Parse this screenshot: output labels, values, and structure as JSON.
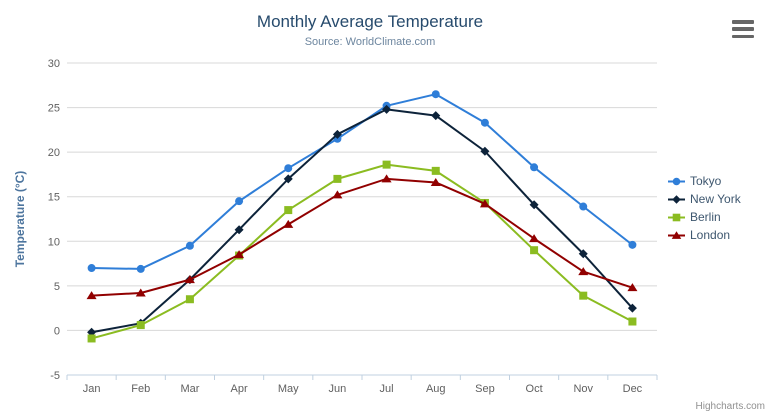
{
  "header": {
    "title": "Monthly Average Temperature",
    "subtitle": "Source: WorldClimate.com"
  },
  "credits_label": "Highcharts.com",
  "theme": {
    "title_color": "#274b6d",
    "subtitle_color": "#6d869f",
    "axis_title_color": "#4d759e",
    "axis_label_color": "#606060",
    "gridline_color": "#d8d8d8",
    "axis_line_color": "#c0d0e0",
    "menu_icon_color": "#666666",
    "credits_color": "#909090"
  },
  "icons": {
    "context_menu": "hamburger-icon"
  },
  "chart_data": {
    "type": "line",
    "title": "Monthly Average Temperature",
    "subtitle": "Source: WorldClimate.com",
    "categories": [
      "Jan",
      "Feb",
      "Mar",
      "Apr",
      "May",
      "Jun",
      "Jul",
      "Aug",
      "Sep",
      "Oct",
      "Nov",
      "Dec"
    ],
    "series": [
      {
        "name": "Tokyo",
        "color": "#2f7ed8",
        "marker": "circle",
        "values": [
          7.0,
          6.9,
          9.5,
          14.5,
          18.2,
          21.5,
          25.2,
          26.5,
          23.3,
          18.3,
          13.9,
          9.6
        ]
      },
      {
        "name": "New York",
        "color": "#0d233a",
        "marker": "diamond",
        "values": [
          -0.2,
          0.8,
          5.7,
          11.3,
          17.0,
          22.0,
          24.8,
          24.1,
          20.1,
          14.1,
          8.6,
          2.5
        ]
      },
      {
        "name": "Berlin",
        "color": "#8bbc21",
        "marker": "square",
        "values": [
          -0.9,
          0.6,
          3.5,
          8.4,
          13.5,
          17.0,
          18.6,
          17.9,
          14.3,
          9.0,
          3.9,
          1.0
        ]
      },
      {
        "name": "London",
        "color": "#910000",
        "marker": "triangle",
        "values": [
          3.9,
          4.2,
          5.7,
          8.5,
          11.9,
          15.2,
          17.0,
          16.6,
          14.2,
          10.3,
          6.6,
          4.8
        ]
      }
    ],
    "xlabel": "",
    "ylabel": "Temperature (°C)",
    "ylim": [
      -5,
      30
    ],
    "ytick_interval": 5,
    "grid": true,
    "legend_position": "right"
  }
}
